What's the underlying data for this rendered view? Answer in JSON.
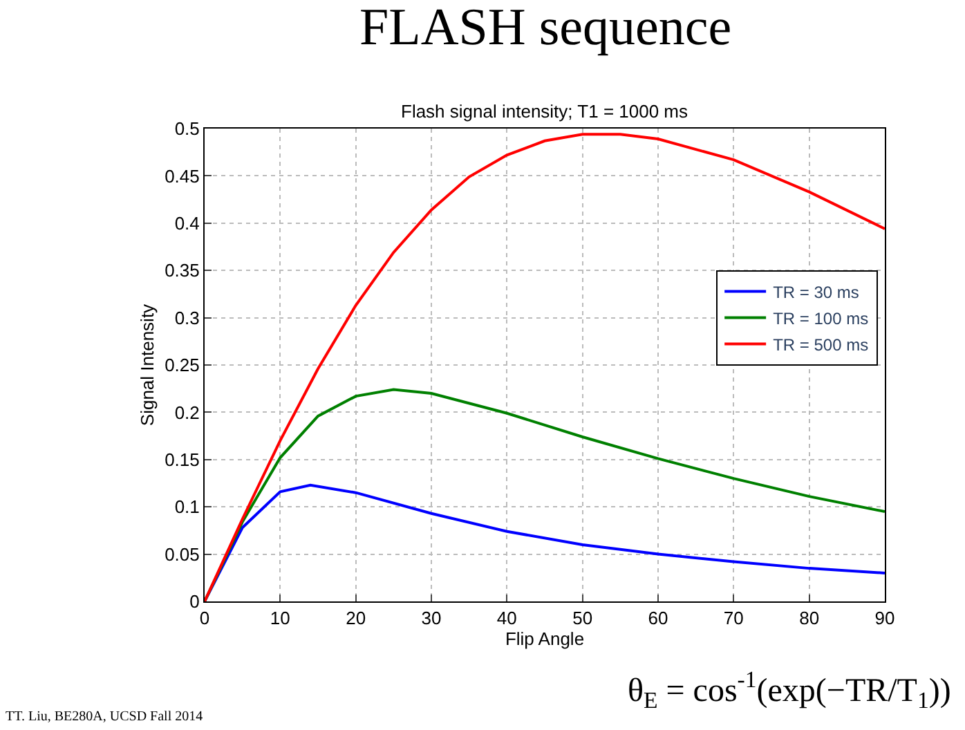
{
  "chart_data": {
    "type": "line",
    "title": "FLASH sequence",
    "subtitle": "Flash signal intensity; T1 = 1000 ms",
    "xlabel": "Flip Angle",
    "ylabel": "Signal Intensity",
    "xlim": [
      0,
      90
    ],
    "xticks": [
      0,
      10,
      20,
      30,
      40,
      50,
      60,
      70,
      80,
      90
    ],
    "ylim": [
      0,
      0.5
    ],
    "yticks": [
      0,
      0.05,
      0.1,
      0.15,
      0.2,
      0.25,
      0.3,
      0.35,
      0.4,
      0.45,
      0.5
    ],
    "grid": true,
    "legend": "right",
    "marker": "none",
    "line_style": "solid",
    "series": [
      {
        "name": "TR = 30 ms",
        "color": "#0000ff",
        "x": [
          0,
          5,
          10,
          14,
          20,
          30,
          40,
          50,
          60,
          70,
          80,
          90
        ],
        "values": [
          0,
          0.078,
          0.116,
          0.123,
          0.115,
          0.093,
          0.074,
          0.06,
          0.05,
          0.042,
          0.035,
          0.03
        ]
      },
      {
        "name": "TR = 100 ms",
        "color": "#008000",
        "x": [
          0,
          5,
          10,
          15,
          20,
          25,
          30,
          40,
          50,
          60,
          70,
          80,
          90
        ],
        "values": [
          0,
          0.084,
          0.152,
          0.196,
          0.217,
          0.224,
          0.22,
          0.199,
          0.174,
          0.151,
          0.13,
          0.111,
          0.095
        ]
      },
      {
        "name": "TR = 500 ms",
        "color": "#ff0000",
        "x": [
          0,
          5,
          10,
          15,
          20,
          25,
          30,
          35,
          40,
          45,
          50,
          55,
          60,
          70,
          80,
          90
        ],
        "values": [
          0,
          0.087,
          0.17,
          0.246,
          0.313,
          0.369,
          0.414,
          0.449,
          0.472,
          0.487,
          0.494,
          0.494,
          0.489,
          0.467,
          0.433,
          0.394
        ]
      }
    ],
    "annotations": [
      "θ$_{E}$ = cos$^{-1}$(exp(−TR/T$_{1}$))",
      "TT. Liu, BE280A, UCSD Fall 2014"
    ]
  }
}
